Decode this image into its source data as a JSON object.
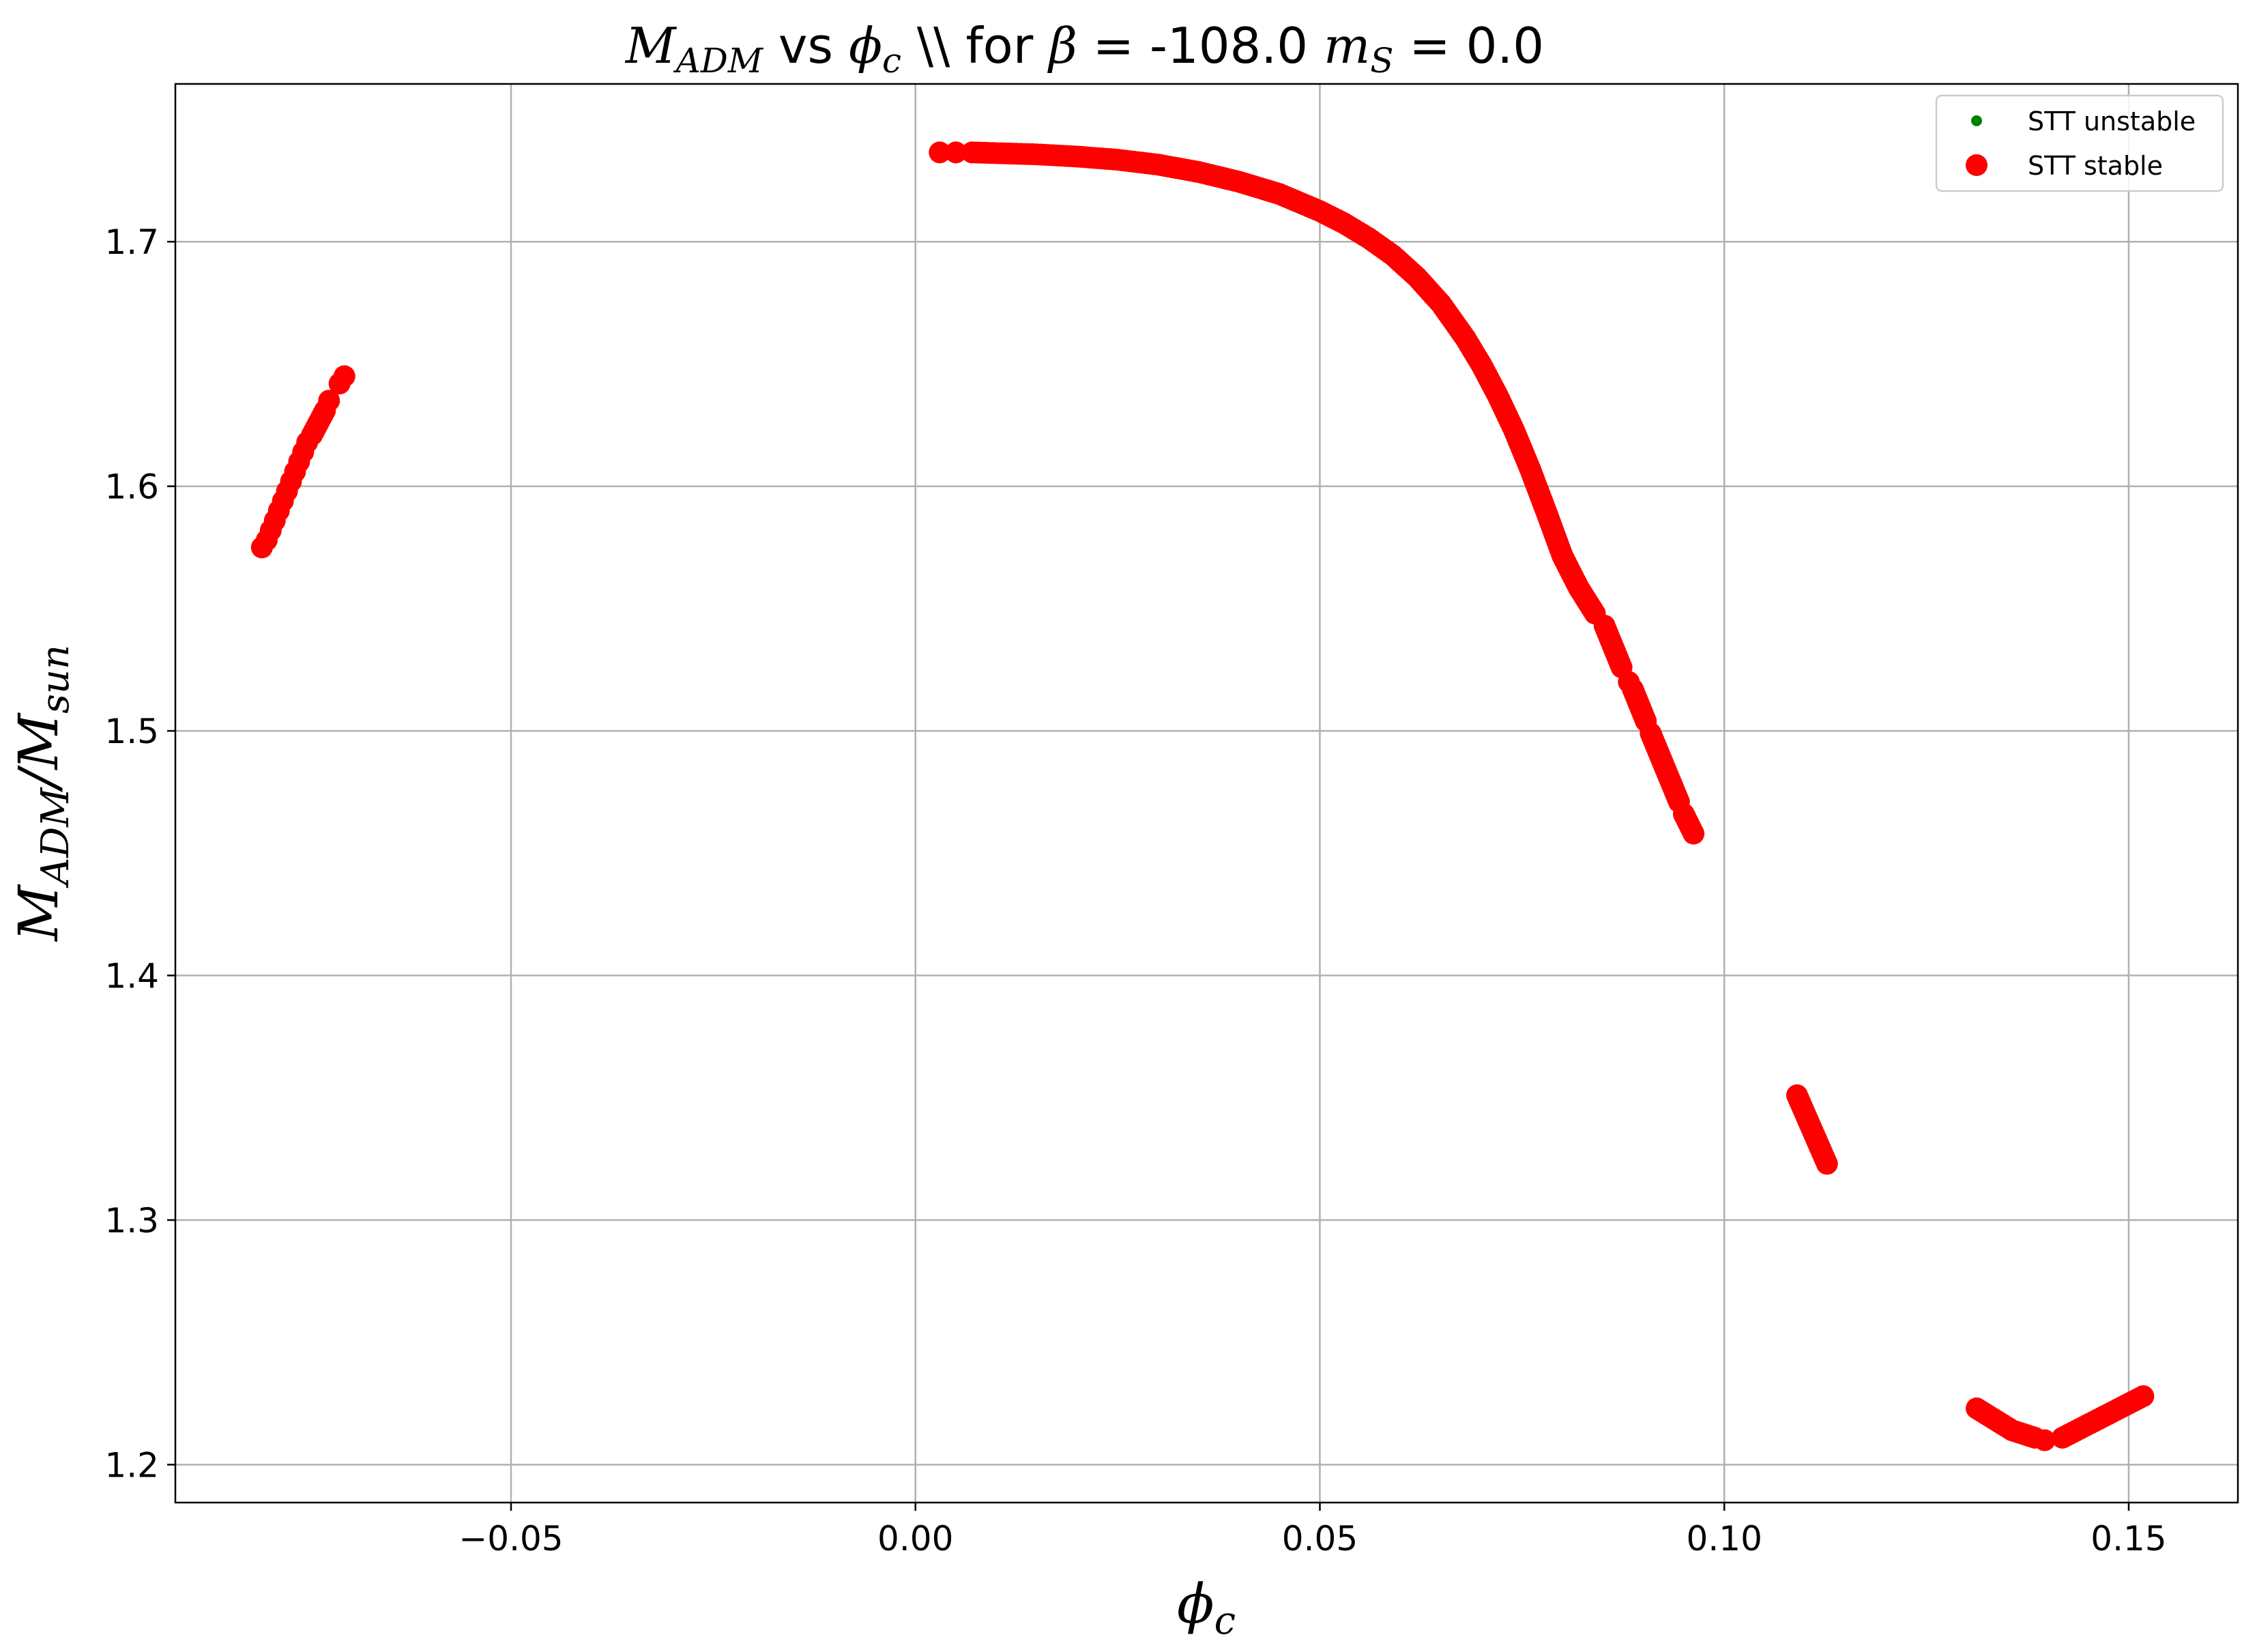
{
  "chart_data": {
    "type": "scatter",
    "title": {
      "parts": [
        {
          "t": "M",
          "style": "math"
        },
        {
          "t": "ADM",
          "style": "math-sub"
        },
        {
          "t": " vs ",
          "style": "normal"
        },
        {
          "t": "ϕ",
          "style": "math"
        },
        {
          "t": "c",
          "style": "math-sub"
        },
        {
          "t": " \\\\ for ",
          "style": "normal"
        },
        {
          "t": "β",
          "style": "math"
        },
        {
          "t": " = -108.0 ",
          "style": "normal"
        },
        {
          "t": "m",
          "style": "math"
        },
        {
          "t": "S",
          "style": "math-sub"
        },
        {
          "t": " = 0.0",
          "style": "normal"
        }
      ]
    },
    "xlabel": {
      "main": "ϕ",
      "sub": "c"
    },
    "ylabel": {
      "main1": "M",
      "sub1": "ADM",
      "mid": "/M",
      "sub2": "sun"
    },
    "xlim": [
      -0.0915,
      0.1635
    ],
    "ylim": [
      1.1845,
      1.7645
    ],
    "xticks": [
      {
        "value": -0.05,
        "label": "−0.05"
      },
      {
        "value": 0.0,
        "label": "0.00"
      },
      {
        "value": 0.05,
        "label": "0.05"
      },
      {
        "value": 0.1,
        "label": "0.10"
      },
      {
        "value": 0.15,
        "label": "0.15"
      }
    ],
    "yticks": [
      {
        "value": 1.2,
        "label": "1.2"
      },
      {
        "value": 1.3,
        "label": "1.3"
      },
      {
        "value": 1.4,
        "label": "1.4"
      },
      {
        "value": 1.5,
        "label": "1.5"
      },
      {
        "value": 1.6,
        "label": "1.6"
      },
      {
        "value": 1.7,
        "label": "1.7"
      }
    ],
    "grid": true,
    "legend_position": "top-right",
    "series": [
      {
        "name": "STT unstable",
        "color": "#008000",
        "marker": "small-dot",
        "points": []
      },
      {
        "name": "STT stable",
        "color": "#ff0000",
        "marker": "large-dot",
        "points": [
          [
            -0.0808,
            1.575
          ],
          [
            -0.0802,
            1.578
          ],
          [
            -0.0797,
            1.582
          ],
          [
            -0.0792,
            1.586
          ],
          [
            -0.0787,
            1.59
          ],
          [
            -0.0782,
            1.594
          ],
          [
            -0.0777,
            1.598
          ],
          [
            -0.0772,
            1.602
          ],
          [
            -0.0767,
            1.606
          ],
          [
            -0.0762,
            1.61
          ],
          [
            -0.0757,
            1.614
          ],
          [
            -0.0752,
            1.618
          ],
          [
            -0.0746,
            1.621
          ],
          [
            -0.073,
            1.631
          ],
          [
            -0.0725,
            1.635
          ],
          [
            -0.0712,
            1.642
          ],
          [
            -0.0706,
            1.645
          ],
          [
            0.003,
            1.7365
          ],
          [
            0.005,
            1.7365
          ],
          [
            0.007,
            1.7365
          ],
          [
            0.01,
            1.7362
          ],
          [
            0.015,
            1.7357
          ],
          [
            0.02,
            1.7348
          ],
          [
            0.025,
            1.7335
          ],
          [
            0.03,
            1.7315
          ],
          [
            0.035,
            1.7285
          ],
          [
            0.04,
            1.7245
          ],
          [
            0.045,
            1.7195
          ],
          [
            0.05,
            1.7125
          ],
          [
            0.053,
            1.7075
          ],
          [
            0.056,
            1.7015
          ],
          [
            0.059,
            1.6945
          ],
          [
            0.062,
            1.6855
          ],
          [
            0.065,
            1.6745
          ],
          [
            0.068,
            1.6605
          ],
          [
            0.07,
            1.6495
          ],
          [
            0.072,
            1.637
          ],
          [
            0.074,
            1.623
          ],
          [
            0.076,
            1.607
          ],
          [
            0.078,
            1.5895
          ],
          [
            0.08,
            1.5715
          ],
          [
            0.082,
            1.5585
          ],
          [
            0.084,
            1.548
          ],
          [
            0.0852,
            1.543
          ],
          [
            0.0873,
            1.526
          ],
          [
            0.0882,
            1.52
          ],
          [
            0.0887,
            1.517
          ],
          [
            0.0903,
            1.504
          ],
          [
            0.0909,
            1.499
          ],
          [
            0.0944,
            1.471
          ],
          [
            0.095,
            1.466
          ],
          [
            0.0962,
            1.458
          ],
          [
            0.109,
            1.351
          ],
          [
            0.1127,
            1.323
          ],
          [
            0.1312,
            1.223
          ],
          [
            0.1356,
            1.214
          ],
          [
            0.1384,
            1.211
          ],
          [
            0.1396,
            1.21
          ],
          [
            0.1418,
            1.211
          ],
          [
            0.1518,
            1.228
          ]
        ]
      }
    ]
  }
}
